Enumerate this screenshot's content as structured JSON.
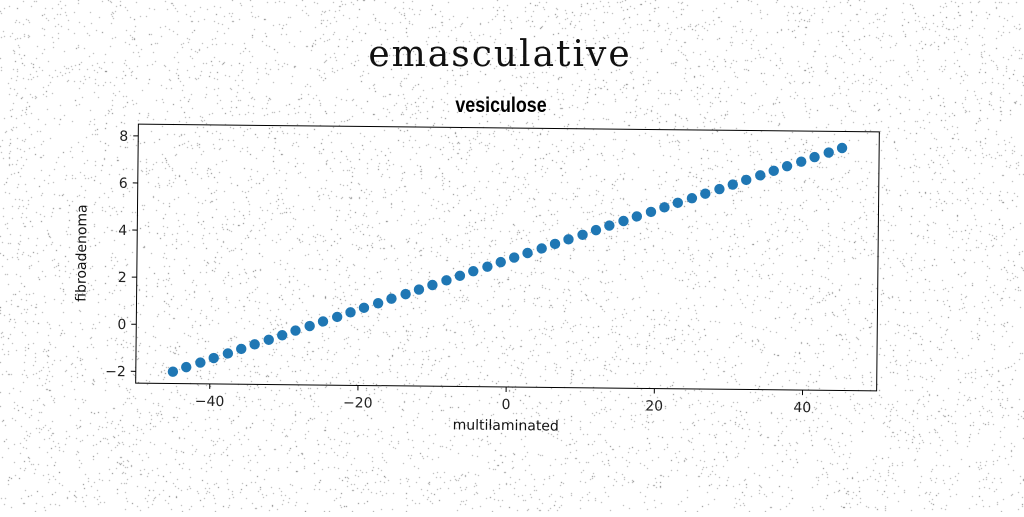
{
  "figure": {
    "suptitle": "emasculative",
    "title": "vesiculose"
  },
  "chart_data": {
    "type": "scatter",
    "title": "vesiculose",
    "xlabel": "multilaminated",
    "ylabel": "fibroadenoma",
    "xlim": [
      -50,
      50
    ],
    "ylim": [
      -2.5,
      8.5
    ],
    "xticks": [
      -40,
      -20,
      0,
      20,
      40
    ],
    "xtick_labels": [
      "−40",
      "−20",
      "0",
      "20",
      "40"
    ],
    "yticks": [
      -2,
      0,
      2,
      4,
      6,
      8
    ],
    "ytick_labels": [
      "−2",
      "0",
      "2",
      "4",
      "6",
      "8"
    ],
    "grid": false,
    "color": "#1f77b4",
    "series": [
      {
        "x": [
          -45.0,
          -43.2,
          -41.3,
          -39.5,
          -37.6,
          -35.8,
          -34.0,
          -32.1,
          -30.3,
          -28.5,
          -26.6,
          -24.8,
          -22.9,
          -21.1,
          -19.3,
          -17.4,
          -15.6,
          -13.7,
          -11.9,
          -10.1,
          -8.2,
          -6.4,
          -4.6,
          -2.7,
          -0.9,
          0.9,
          2.7,
          4.6,
          6.4,
          8.2,
          10.1,
          11.9,
          13.7,
          15.6,
          17.4,
          19.3,
          21.1,
          22.9,
          24.8,
          26.6,
          28.5,
          30.3,
          32.1,
          34.0,
          35.8,
          37.6,
          39.5,
          41.3,
          43.2,
          45.0
        ],
        "y": [
          -2.0,
          -1.8,
          -1.6,
          -1.4,
          -1.2,
          -1.0,
          -0.8,
          -0.6,
          -0.4,
          -0.2,
          0.0,
          0.2,
          0.4,
          0.6,
          0.8,
          1.0,
          1.2,
          1.4,
          1.6,
          1.8,
          2.0,
          2.2,
          2.4,
          2.6,
          2.8,
          3.0,
          3.2,
          3.4,
          3.6,
          3.8,
          4.0,
          4.2,
          4.4,
          4.6,
          4.8,
          5.0,
          5.2,
          5.4,
          5.6,
          5.8,
          6.0,
          6.2,
          6.4,
          6.6,
          6.8,
          7.0,
          7.2,
          7.4,
          7.6,
          7.8
        ]
      }
    ]
  }
}
